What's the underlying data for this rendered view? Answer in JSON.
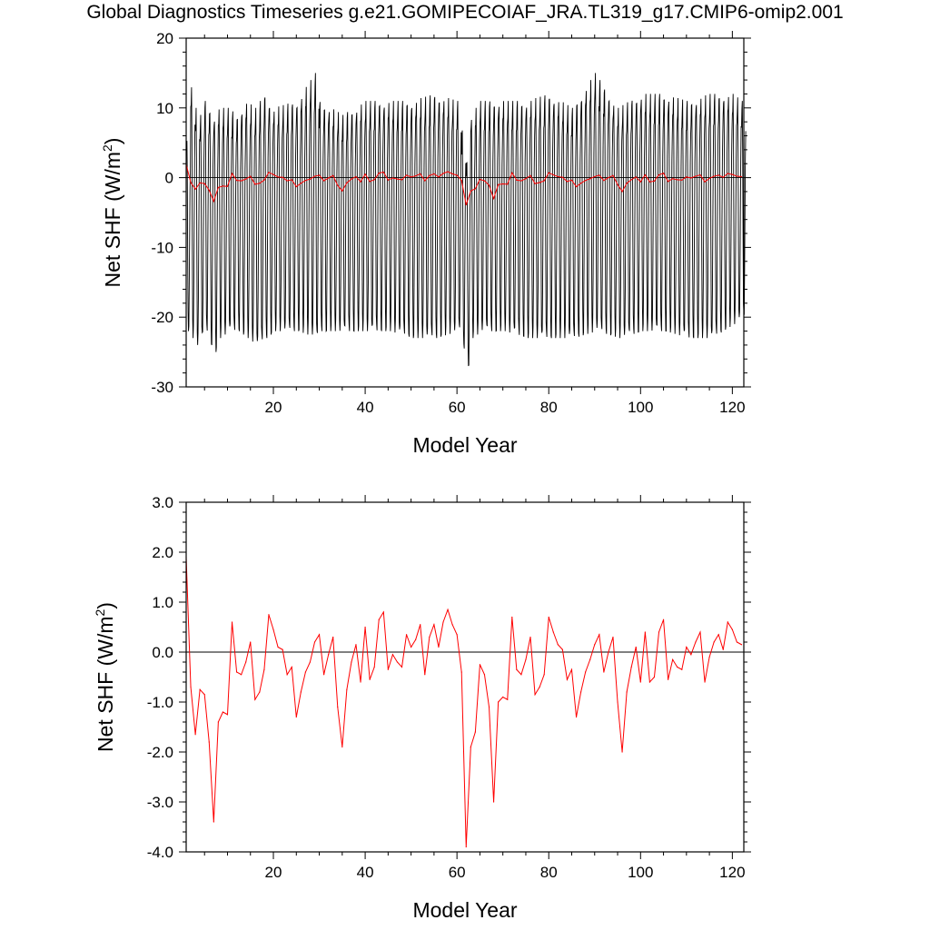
{
  "title": "Global Diagnostics Timeseries g.e21.GOMIPECOIAF_JRA.TL319_g17.CMIP6-omip2.001",
  "colors": {
    "monthly": "#000000",
    "annual": "#ff0000",
    "zero_line": "#000000"
  },
  "chart_data": [
    {
      "type": "line",
      "xlabel": "Model Year",
      "ylabel": "Net SHF (W/m²)",
      "ylabel_main": "Net SHF (W/m",
      "ylabel_sup": "2",
      "ylabel_end": ")",
      "xlim": [
        1,
        122.5
      ],
      "ylim": [
        -30,
        20
      ],
      "xticks": [
        20,
        40,
        60,
        80,
        100,
        120
      ],
      "yticks": [
        -30,
        -20,
        -10,
        0,
        10,
        20
      ],
      "ytick_labels": [
        "-30",
        "-20",
        "-10",
        "0",
        "10",
        "20"
      ],
      "zero_line": 0,
      "monthly_envelope": {
        "years": [
          1,
          2,
          3,
          4,
          5,
          6,
          7,
          8,
          10,
          12,
          14,
          16,
          18,
          20,
          25,
          29,
          30,
          35,
          40,
          45,
          50,
          55,
          60,
          62,
          63,
          65,
          70,
          75,
          80,
          85,
          90,
          95,
          100,
          105,
          110,
          115,
          120,
          122
        ],
        "max": [
          6,
          13,
          10,
          9,
          11,
          10,
          9,
          10,
          10,
          9,
          11,
          10,
          12,
          10,
          11,
          15,
          11,
          9,
          11,
          11,
          11,
          12,
          11,
          3,
          9,
          11,
          11,
          11,
          12,
          10,
          15,
          10,
          12,
          12,
          11,
          12,
          12,
          11
        ],
        "min": [
          -22,
          -23,
          -24,
          -23,
          -22,
          -24,
          -25,
          -23,
          -22,
          -22,
          -23,
          -24,
          -23,
          -22,
          -22,
          -23,
          -22,
          -22,
          -22,
          -22,
          -23,
          -23,
          -22,
          -27,
          -23,
          -22,
          -22,
          -23,
          -23,
          -23,
          -22,
          -23,
          -22,
          -22,
          -23,
          -23,
          -21,
          -20
        ]
      },
      "series": [
        {
          "color": "#ff0000",
          "x": [
            1,
            2,
            3,
            4,
            5,
            6,
            7,
            8,
            9,
            10,
            11,
            12,
            13,
            14,
            15,
            16,
            17,
            18,
            19,
            20,
            21,
            22,
            23,
            24,
            25,
            26,
            27,
            28,
            29,
            30,
            31,
            32,
            33,
            34,
            35,
            36,
            37,
            38,
            39,
            40,
            41,
            42,
            43,
            44,
            45,
            46,
            47,
            48,
            49,
            50,
            51,
            52,
            53,
            54,
            55,
            56,
            57,
            58,
            59,
            60,
            61,
            62,
            63,
            64,
            65,
            66,
            67,
            68,
            69,
            70,
            71,
            72,
            73,
            74,
            75,
            76,
            77,
            78,
            79,
            80,
            81,
            82,
            83,
            84,
            85,
            86,
            87,
            88,
            89,
            90,
            91,
            92,
            93,
            94,
            95,
            96,
            97,
            98,
            99,
            100,
            101,
            102,
            103,
            104,
            105,
            106,
            107,
            108,
            109,
            110,
            111,
            112,
            113,
            114,
            115,
            116,
            117,
            118,
            119,
            120,
            121,
            122
          ],
          "values": [
            1.9,
            -0.7,
            -1.65,
            -0.75,
            -0.85,
            -1.8,
            -3.4,
            -1.4,
            -1.2,
            -1.25,
            0.6,
            -0.4,
            -0.45,
            -0.2,
            0.2,
            -0.95,
            -0.8,
            -0.35,
            0.75,
            0.45,
            0.1,
            0.05,
            -0.45,
            -0.3,
            -1.3,
            -0.8,
            -0.4,
            -0.2,
            0.2,
            0.35,
            -0.45,
            -0.05,
            0.3,
            -1.1,
            -1.9,
            -0.75,
            -0.2,
            0.15,
            -0.6,
            0.5,
            -0.55,
            -0.3,
            0.65,
            0.8,
            -0.35,
            -0.05,
            -0.2,
            -0.3,
            0.35,
            0.1,
            0.25,
            0.55,
            -0.45,
            0.3,
            0.55,
            0.1,
            0.6,
            0.85,
            0.55,
            0.35,
            -0.4,
            -3.9,
            -1.9,
            -1.6,
            -0.25,
            -0.45,
            -1.1,
            -3.0,
            -1.0,
            -0.9,
            -0.95,
            0.7,
            -0.35,
            -0.45,
            -0.15,
            0.3,
            -0.85,
            -0.7,
            -0.45,
            0.7,
            0.4,
            0.15,
            0.05,
            -0.55,
            -0.35,
            -1.3,
            -0.8,
            -0.4,
            -0.15,
            0.15,
            0.35,
            -0.4,
            0.0,
            0.3,
            -1.0,
            -2.0,
            -0.8,
            -0.3,
            0.1,
            -0.6,
            0.4,
            -0.6,
            -0.5,
            0.4,
            0.65,
            -0.55,
            -0.15,
            -0.3,
            -0.35,
            0.1,
            -0.05,
            0.2,
            0.4,
            -0.6,
            -0.1,
            0.2,
            0.35,
            0.05,
            0.6,
            0.45,
            0.2,
            0.15
          ]
        }
      ]
    },
    {
      "type": "line",
      "xlabel": "Model Year",
      "ylabel": "Net SHF (W/m²)",
      "ylabel_main": "Net SHF (W/m",
      "ylabel_sup": "2",
      "ylabel_end": ")",
      "xlim": [
        1,
        122.5
      ],
      "ylim": [
        -4,
        3
      ],
      "xticks": [
        20,
        40,
        60,
        80,
        100,
        120
      ],
      "yticks": [
        -4,
        -3,
        -2,
        -1,
        0,
        1,
        2,
        3
      ],
      "ytick_labels": [
        "-4.0",
        "-3.0",
        "-2.0",
        "-1.0",
        "0.0",
        "1.0",
        "2.0",
        "3.0"
      ],
      "zero_line": 0,
      "series": [
        {
          "color": "#ff0000",
          "x": [
            1,
            2,
            3,
            4,
            5,
            6,
            7,
            8,
            9,
            10,
            11,
            12,
            13,
            14,
            15,
            16,
            17,
            18,
            19,
            20,
            21,
            22,
            23,
            24,
            25,
            26,
            27,
            28,
            29,
            30,
            31,
            32,
            33,
            34,
            35,
            36,
            37,
            38,
            39,
            40,
            41,
            42,
            43,
            44,
            45,
            46,
            47,
            48,
            49,
            50,
            51,
            52,
            53,
            54,
            55,
            56,
            57,
            58,
            59,
            60,
            61,
            62,
            63,
            64,
            65,
            66,
            67,
            68,
            69,
            70,
            71,
            72,
            73,
            74,
            75,
            76,
            77,
            78,
            79,
            80,
            81,
            82,
            83,
            84,
            85,
            86,
            87,
            88,
            89,
            90,
            91,
            92,
            93,
            94,
            95,
            96,
            97,
            98,
            99,
            100,
            101,
            102,
            103,
            104,
            105,
            106,
            107,
            108,
            109,
            110,
            111,
            112,
            113,
            114,
            115,
            116,
            117,
            118,
            119,
            120,
            121,
            122
          ],
          "values": [
            1.9,
            -0.7,
            -1.65,
            -0.75,
            -0.85,
            -1.8,
            -3.4,
            -1.4,
            -1.2,
            -1.25,
            0.6,
            -0.4,
            -0.45,
            -0.2,
            0.2,
            -0.95,
            -0.8,
            -0.35,
            0.75,
            0.45,
            0.1,
            0.05,
            -0.45,
            -0.3,
            -1.3,
            -0.8,
            -0.4,
            -0.2,
            0.2,
            0.35,
            -0.45,
            -0.05,
            0.3,
            -1.1,
            -1.9,
            -0.75,
            -0.2,
            0.15,
            -0.6,
            0.5,
            -0.55,
            -0.3,
            0.65,
            0.8,
            -0.35,
            -0.05,
            -0.2,
            -0.3,
            0.35,
            0.1,
            0.25,
            0.55,
            -0.45,
            0.3,
            0.55,
            0.1,
            0.6,
            0.85,
            0.55,
            0.35,
            -0.4,
            -3.9,
            -1.9,
            -1.6,
            -0.25,
            -0.45,
            -1.1,
            -3.0,
            -1.0,
            -0.9,
            -0.95,
            0.7,
            -0.35,
            -0.45,
            -0.15,
            0.3,
            -0.85,
            -0.7,
            -0.45,
            0.7,
            0.4,
            0.15,
            0.05,
            -0.55,
            -0.35,
            -1.3,
            -0.8,
            -0.4,
            -0.15,
            0.15,
            0.35,
            -0.4,
            0.0,
            0.3,
            -1.0,
            -2.0,
            -0.8,
            -0.3,
            0.1,
            -0.6,
            0.4,
            -0.6,
            -0.5,
            0.4,
            0.65,
            -0.55,
            -0.15,
            -0.3,
            -0.35,
            0.1,
            -0.05,
            0.2,
            0.4,
            -0.6,
            -0.1,
            0.2,
            0.35,
            0.05,
            0.6,
            0.45,
            0.2,
            0.15
          ]
        }
      ]
    }
  ]
}
